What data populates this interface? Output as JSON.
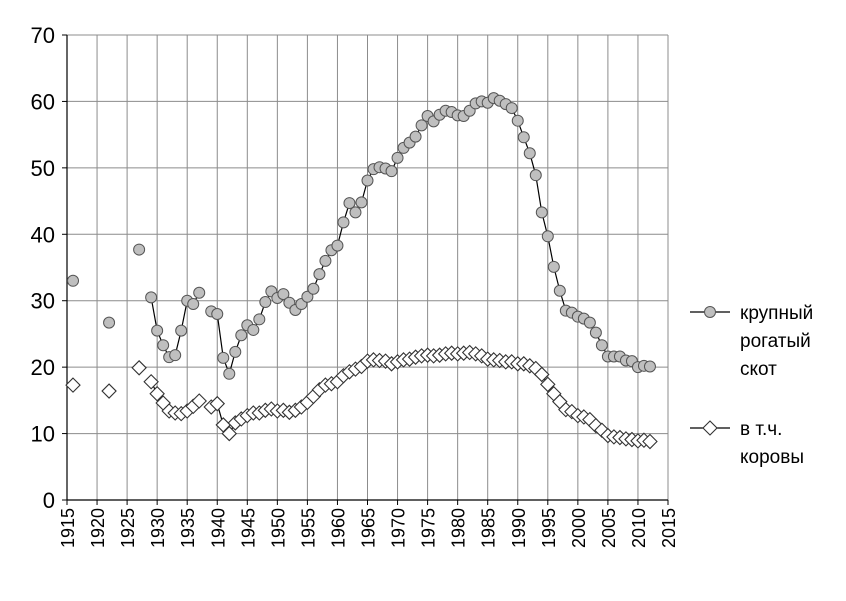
{
  "chart_data": {
    "type": "line",
    "title": "",
    "xlabel": "",
    "ylabel": "",
    "xlim": [
      1915,
      2015
    ],
    "ylim": [
      0,
      70
    ],
    "x_ticks": [
      1915,
      1920,
      1925,
      1930,
      1935,
      1940,
      1945,
      1950,
      1955,
      1960,
      1965,
      1970,
      1975,
      1980,
      1985,
      1990,
      1995,
      2000,
      2005,
      2010,
      2015
    ],
    "y_ticks": [
      0,
      10,
      20,
      30,
      40,
      50,
      60,
      70
    ],
    "grid": true,
    "legend_position": "right",
    "series": [
      {
        "name": "крупный рогатый скот",
        "legend_lines": [
          "крупный",
          "рогатый",
          "скот"
        ],
        "marker": "circle",
        "marker_fill": "#bfbfbf",
        "x": [
          1916,
          1922,
          1927,
          1929,
          1930,
          1931,
          1932,
          1933,
          1934,
          1935,
          1936,
          1937,
          1939,
          1940,
          1941,
          1942,
          1943,
          1944,
          1945,
          1946,
          1947,
          1948,
          1949,
          1950,
          1951,
          1952,
          1953,
          1954,
          1955,
          1956,
          1957,
          1958,
          1959,
          1960,
          1961,
          1962,
          1963,
          1964,
          1965,
          1966,
          1967,
          1968,
          1969,
          1970,
          1971,
          1972,
          1973,
          1974,
          1975,
          1976,
          1977,
          1978,
          1979,
          1980,
          1981,
          1982,
          1983,
          1984,
          1985,
          1986,
          1987,
          1988,
          1989,
          1990,
          1991,
          1992,
          1993,
          1994,
          1995,
          1996,
          1997,
          1998,
          1999,
          2000,
          2001,
          2002,
          2003,
          2004,
          2005,
          2006,
          2007,
          2008,
          2009,
          2010,
          2011,
          2012
        ],
        "y": [
          33.0,
          26.7,
          37.7,
          30.5,
          25.5,
          23.3,
          21.5,
          21.8,
          25.5,
          30.0,
          29.5,
          31.2,
          28.4,
          28.0,
          21.4,
          19.0,
          22.3,
          24.8,
          26.3,
          25.6,
          27.2,
          29.8,
          31.4,
          30.4,
          31.0,
          29.7,
          28.6,
          29.5,
          30.6,
          31.8,
          34.0,
          36.0,
          37.6,
          38.3,
          41.8,
          44.7,
          43.3,
          44.8,
          48.1,
          49.8,
          50.1,
          49.9,
          49.5,
          51.5,
          53.0,
          53.8,
          54.7,
          56.4,
          57.8,
          57.0,
          58.0,
          58.6,
          58.4,
          57.9,
          57.8,
          58.6,
          59.7,
          60.0,
          59.8,
          60.5,
          60.1,
          59.6,
          59.0,
          57.1,
          54.6,
          52.2,
          48.9,
          43.3,
          39.7,
          35.1,
          31.5,
          28.5,
          28.2,
          27.6,
          27.3,
          26.7,
          25.2,
          23.3,
          21.6,
          21.6,
          21.6,
          21.0,
          20.9,
          20.0,
          20.2,
          20.1
        ]
      },
      {
        "name": "в т.ч. коровы",
        "legend_lines": [
          "в т.ч.",
          "коровы"
        ],
        "marker": "diamond",
        "marker_fill": "#ffffff",
        "x": [
          1916,
          1922,
          1927,
          1929,
          1930,
          1931,
          1932,
          1933,
          1934,
          1935,
          1936,
          1937,
          1939,
          1940,
          1941,
          1942,
          1943,
          1944,
          1945,
          1946,
          1947,
          1948,
          1949,
          1950,
          1951,
          1952,
          1953,
          1954,
          1955,
          1956,
          1957,
          1958,
          1959,
          1960,
          1961,
          1962,
          1963,
          1964,
          1965,
          1966,
          1967,
          1968,
          1969,
          1970,
          1971,
          1972,
          1973,
          1974,
          1975,
          1976,
          1977,
          1978,
          1979,
          1980,
          1981,
          1982,
          1983,
          1984,
          1985,
          1986,
          1987,
          1988,
          1989,
          1990,
          1991,
          1992,
          1993,
          1994,
          1995,
          1996,
          1997,
          1998,
          1999,
          2000,
          2001,
          2002,
          2003,
          2004,
          2005,
          2006,
          2007,
          2008,
          2009,
          2010,
          2011,
          2012
        ],
        "y": [
          17.3,
          16.4,
          19.9,
          17.8,
          16.0,
          14.6,
          13.4,
          13.1,
          13.0,
          13.4,
          14.1,
          14.9,
          14.0,
          14.5,
          11.3,
          10.0,
          11.6,
          12.2,
          12.7,
          13.1,
          13.1,
          13.5,
          13.7,
          13.4,
          13.5,
          13.2,
          13.5,
          14.0,
          14.7,
          15.6,
          16.6,
          17.3,
          17.5,
          17.8,
          18.7,
          19.3,
          19.7,
          20.1,
          20.9,
          21.1,
          21.0,
          20.9,
          20.5,
          20.8,
          21.1,
          21.2,
          21.5,
          21.7,
          21.8,
          21.7,
          21.8,
          22.0,
          22.1,
          22.0,
          22.1,
          22.2,
          22.0,
          21.7,
          21.2,
          21.1,
          21.0,
          20.8,
          20.8,
          20.5,
          20.5,
          20.2,
          19.8,
          18.9,
          17.4,
          16.0,
          14.8,
          13.6,
          13.3,
          12.7,
          12.5,
          12.1,
          11.2,
          10.5,
          9.7,
          9.5,
          9.4,
          9.2,
          9.1,
          8.9,
          9.0,
          8.8
        ]
      }
    ]
  }
}
